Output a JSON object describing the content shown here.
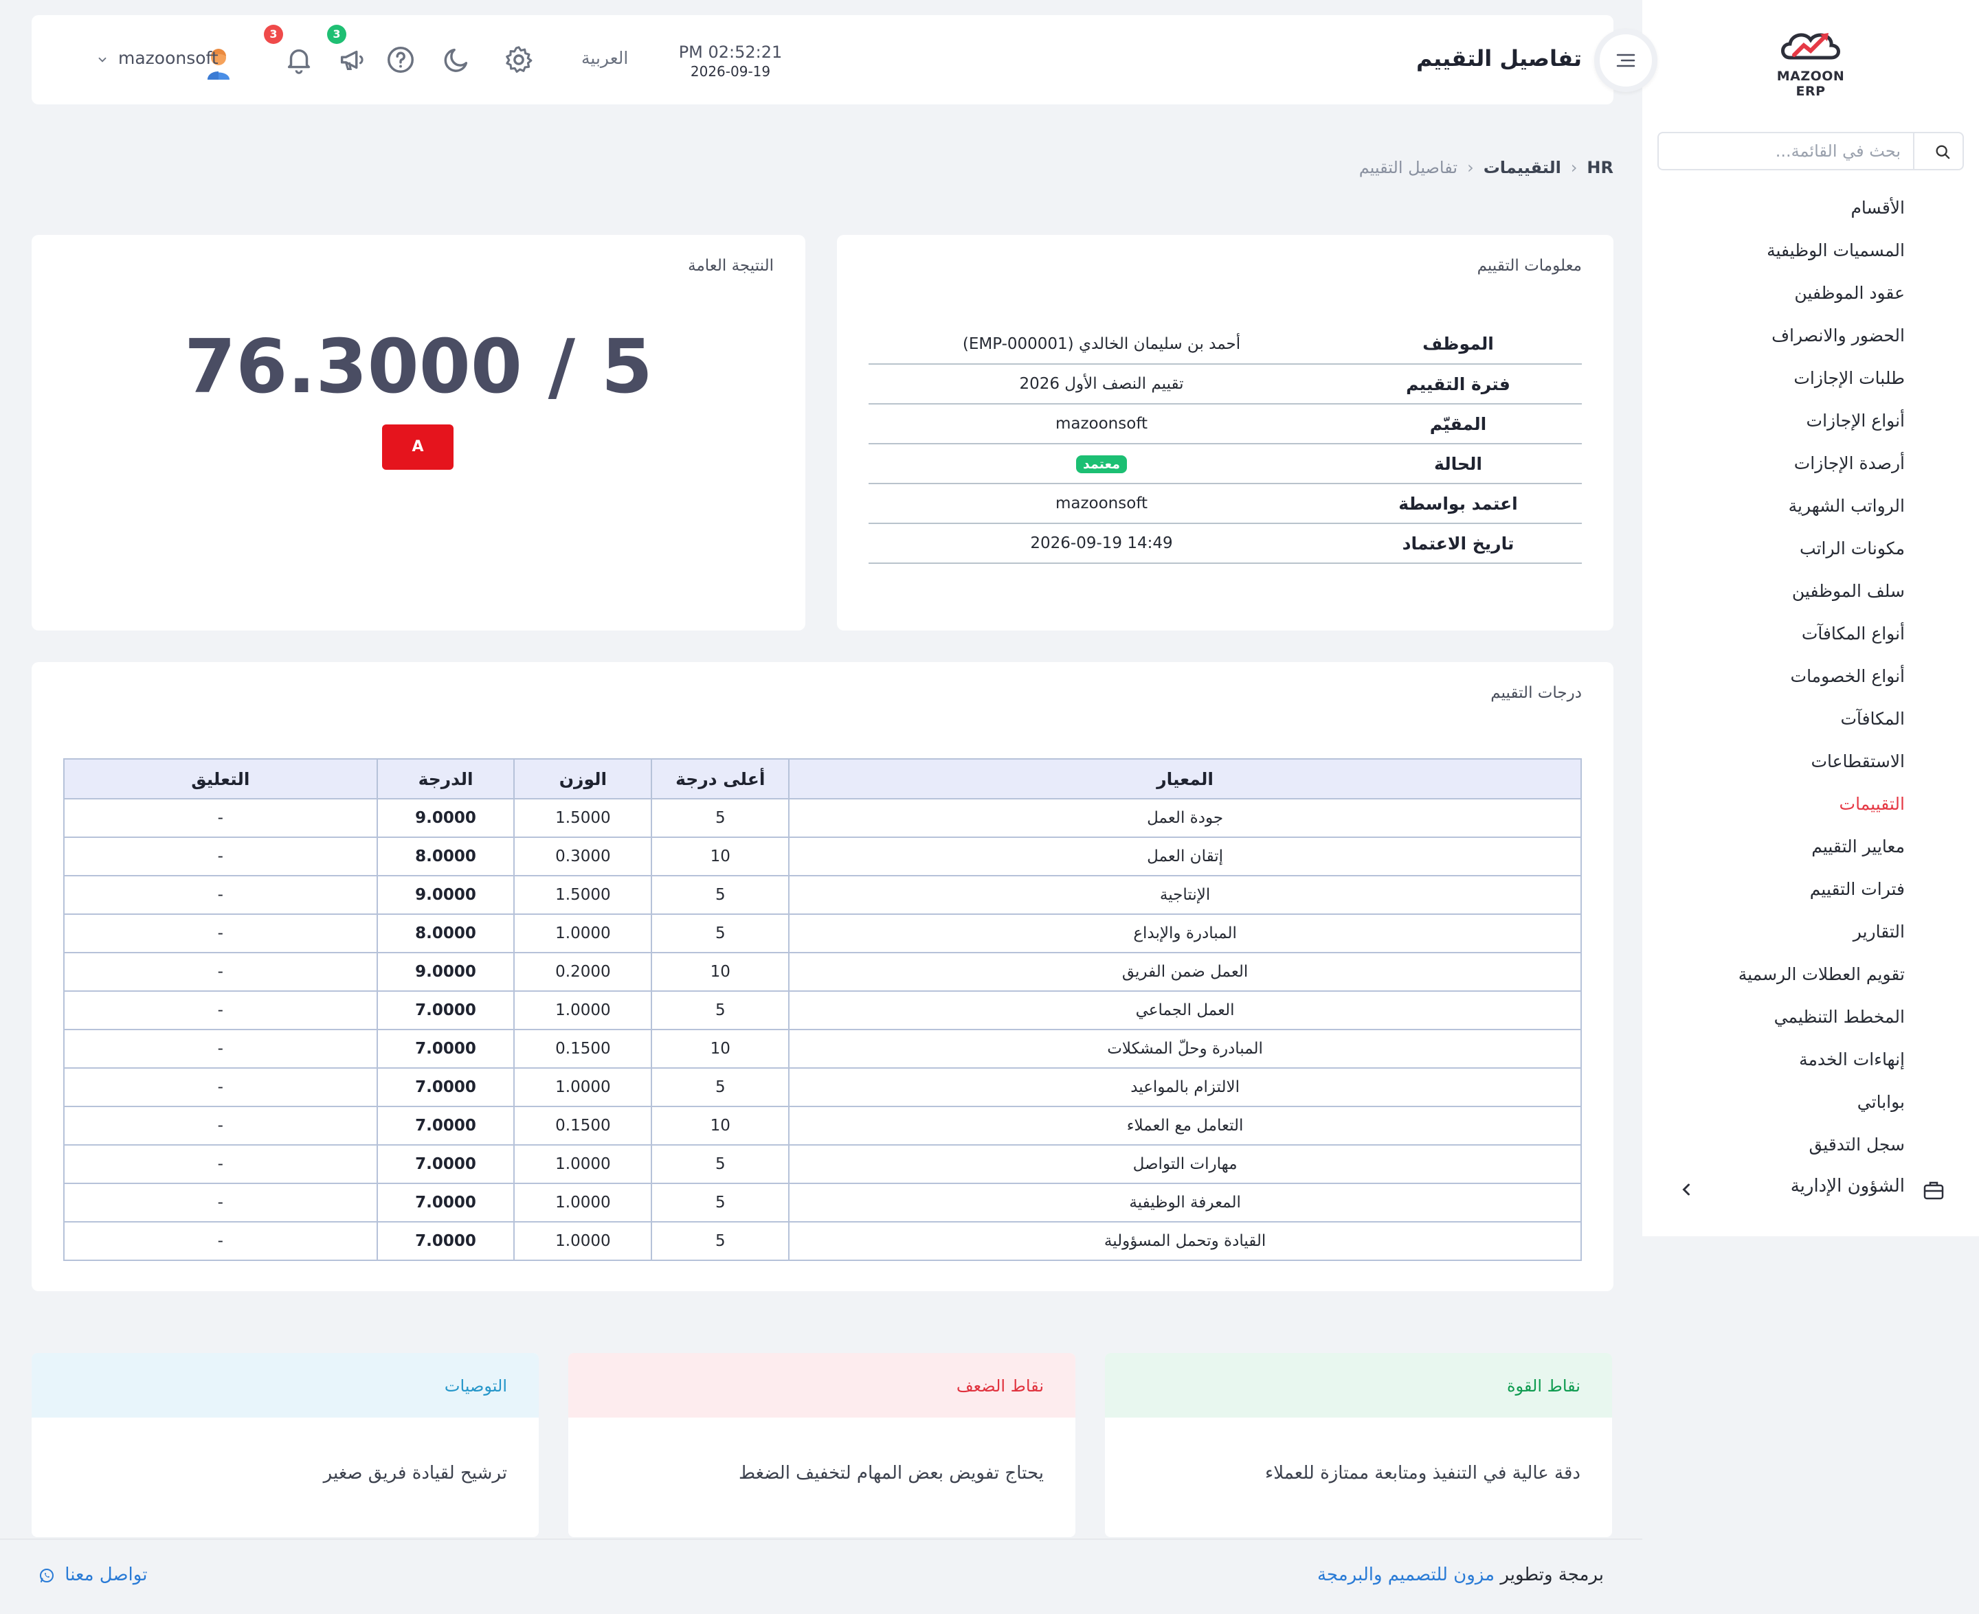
{
  "app": {
    "logo_text": "MAZOON ERP"
  },
  "header": {
    "title": "تفاصيل التقييم",
    "time": "PM 02:52:21",
    "date": "2026-09-19",
    "language": "العربية",
    "notifications_count": "3",
    "announcements_count": "3",
    "username": "mazoonsoft"
  },
  "sidebar": {
    "search_placeholder": "بحث في القائمة...",
    "items": [
      {
        "label": "الأقسام"
      },
      {
        "label": "المسميات الوظيفية"
      },
      {
        "label": "عقود الموظفين"
      },
      {
        "label": "الحضور والانصراف"
      },
      {
        "label": "طلبات الإجازات"
      },
      {
        "label": "أنواع الإجازات"
      },
      {
        "label": "أرصدة الإجازات"
      },
      {
        "label": "الرواتب الشهرية"
      },
      {
        "label": "مكونات الراتب"
      },
      {
        "label": "سلف الموظفين"
      },
      {
        "label": "أنواع المكافآت"
      },
      {
        "label": "أنواع الخصومات"
      },
      {
        "label": "المكافآت"
      },
      {
        "label": "الاستقطاعات"
      },
      {
        "label": "التقييمات",
        "active": true
      },
      {
        "label": "معايير التقييم"
      },
      {
        "label": "فترات التقييم"
      },
      {
        "label": "التقارير"
      },
      {
        "label": "تقويم العطلات الرسمية"
      },
      {
        "label": "المخطط التنظيمي"
      },
      {
        "label": "إنهاءات الخدمة"
      },
      {
        "label": "بواباتي"
      },
      {
        "label": "سجل التدقيق"
      }
    ],
    "group_label": "الشؤون الإدارية"
  },
  "breadcrumb": {
    "root": "HR",
    "parent": "التقييمات",
    "current": "تفاصيل التقييم"
  },
  "info": {
    "title": "معلومات التقييم",
    "rows": [
      {
        "label": "الموظف",
        "value": "أحمد بن سليمان الخالدي (EMP-000001)"
      },
      {
        "label": "فترة التقييم",
        "value": "تقييم النصف الأول 2026"
      },
      {
        "label": "المقيّم",
        "value": "mazoonsoft"
      },
      {
        "label": "الحالة",
        "value": "معتمد"
      },
      {
        "label": "اعتمد بواسطة",
        "value": "mazoonsoft"
      },
      {
        "label": "تاريخ الاعتماد",
        "value": "2026-09-19 14:49"
      }
    ]
  },
  "result": {
    "title": "النتيجة العامة",
    "score": "76.3000 / 5",
    "grade": "A"
  },
  "scores": {
    "title": "درجات التقييم",
    "headers": {
      "criterion": "المعيار",
      "max": "أعلى درجة",
      "weight": "الوزن",
      "score": "الدرجة",
      "comment": "التعليق"
    },
    "rows": [
      {
        "criterion": "جودة العمل",
        "max": "5",
        "weight": "1.5000",
        "score": "9.0000",
        "comment": "-"
      },
      {
        "criterion": "إتقان العمل",
        "max": "10",
        "weight": "0.3000",
        "score": "8.0000",
        "comment": "-"
      },
      {
        "criterion": "الإنتاجية",
        "max": "5",
        "weight": "1.5000",
        "score": "9.0000",
        "comment": "-"
      },
      {
        "criterion": "المبادرة والإبداع",
        "max": "5",
        "weight": "1.0000",
        "score": "8.0000",
        "comment": "-"
      },
      {
        "criterion": "العمل ضمن الفريق",
        "max": "10",
        "weight": "0.2000",
        "score": "9.0000",
        "comment": "-"
      },
      {
        "criterion": "العمل الجماعي",
        "max": "5",
        "weight": "1.0000",
        "score": "7.0000",
        "comment": "-"
      },
      {
        "criterion": "المبادرة وحلّ المشكلات",
        "max": "10",
        "weight": "0.1500",
        "score": "7.0000",
        "comment": "-"
      },
      {
        "criterion": "الالتزام بالمواعيد",
        "max": "5",
        "weight": "1.0000",
        "score": "7.0000",
        "comment": "-"
      },
      {
        "criterion": "التعامل مع العملاء",
        "max": "10",
        "weight": "0.1500",
        "score": "7.0000",
        "comment": "-"
      },
      {
        "criterion": "مهارات التواصل",
        "max": "5",
        "weight": "1.0000",
        "score": "7.0000",
        "comment": "-"
      },
      {
        "criterion": "المعرفة الوظيفية",
        "max": "5",
        "weight": "1.0000",
        "score": "7.0000",
        "comment": "-"
      },
      {
        "criterion": "القيادة وتحمل المسؤولية",
        "max": "5",
        "weight": "1.0000",
        "score": "7.0000",
        "comment": "-"
      }
    ]
  },
  "notes": {
    "strengths": {
      "title": "نقاط القوة",
      "text": "دقة عالية في التنفيذ ومتابعة ممتازة للعملاء"
    },
    "weaknesses": {
      "title": "نقاط الضعف",
      "text": "يحتاج تفويض بعض المهام لتخفيف الضغط"
    },
    "recommendations": {
      "title": "التوصيات",
      "text": "ترشيح لقيادة فريق صغير"
    }
  },
  "footer": {
    "credit_prefix": "برمجة وتطوير",
    "credit_link": "مزون للتصميم والبرمجة",
    "contact": "تواصل معنا"
  },
  "colors": {
    "accent": "#e53945",
    "success": "#1cbf73",
    "grade": "#e5141d",
    "link": "#2a7bd6"
  },
  "icons": [
    "search-icon",
    "menu-toggle-icon",
    "gear-icon",
    "moon-icon",
    "help-icon",
    "megaphone-icon",
    "bell-icon",
    "avatar",
    "chevron-down-icon",
    "briefcase-icon",
    "chevron-left-icon",
    "whatsapp-icon"
  ]
}
